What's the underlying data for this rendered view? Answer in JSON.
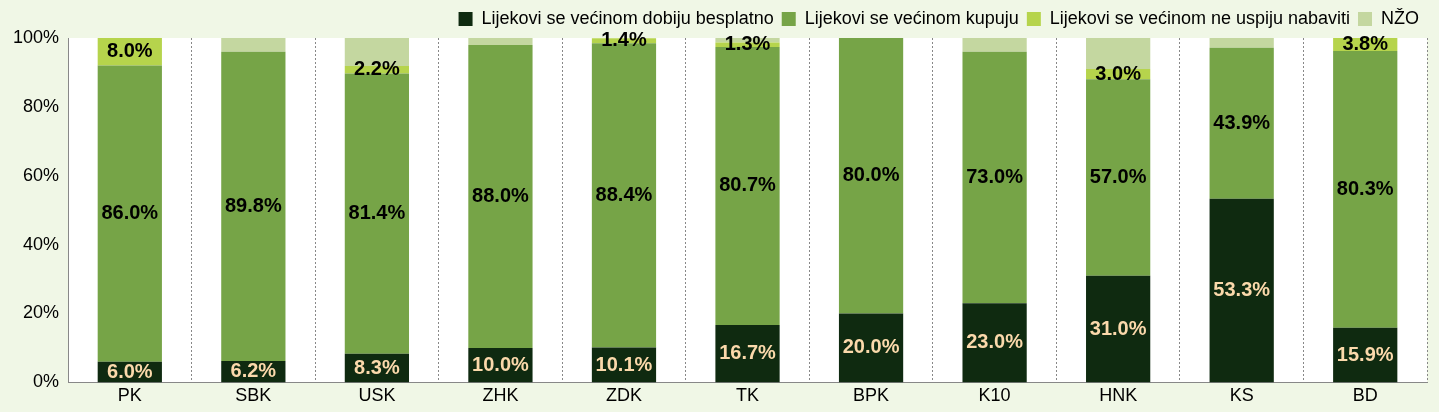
{
  "chart_data": {
    "type": "bar",
    "stacked": true,
    "categories": [
      "PK",
      "SBK",
      "USK",
      "ZHK",
      "ZDK",
      "TK",
      "BPK",
      "K10",
      "HNK",
      "KS",
      "BD"
    ],
    "series": [
      {
        "name": "Lijekovi se većinom dobiju besplatno",
        "color": "#0f2a10",
        "values": [
          6.0,
          6.2,
          8.3,
          10.0,
          10.1,
          16.7,
          20.0,
          23.0,
          31.0,
          53.3,
          15.9
        ],
        "value_labels": [
          "6.0%",
          "6.2%",
          "8.3%",
          "10.0%",
          "10.1%",
          "16.7%",
          "20.0%",
          "23.0%",
          "31.0%",
          "53.3%",
          "15.9%"
        ]
      },
      {
        "name": "Lijekovi se većinom kupuju",
        "color": "#76a447",
        "values": [
          86.0,
          89.8,
          81.4,
          88.0,
          88.4,
          80.7,
          80.0,
          73.0,
          57.0,
          43.9,
          80.3
        ],
        "value_labels": [
          "86.0%",
          "89.8%",
          "81.4%",
          "88.0%",
          "88.4%",
          "80.7%",
          "80.0%",
          "73.0%",
          "57.0%",
          "43.9%",
          "80.3%"
        ]
      },
      {
        "name": "Lijekovi se većinom ne uspiju nabaviti",
        "color": "#b6d44c",
        "values": [
          8.0,
          0,
          2.2,
          0,
          1.4,
          1.3,
          0,
          0,
          3.0,
          0,
          3.8
        ],
        "value_labels": [
          "8.0%",
          null,
          "2.2%",
          null,
          "1.4%",
          "1.3%",
          null,
          null,
          "3.0%",
          null,
          "3.8%"
        ]
      },
      {
        "name": "NŽO",
        "color": "#c4d7a0",
        "values": [
          0,
          4.0,
          8.1,
          2.0,
          null,
          1.3,
          0,
          4.0,
          9.0,
          2.8,
          0
        ],
        "value_labels": [
          null,
          null,
          null,
          null,
          null,
          null,
          null,
          null,
          null,
          null,
          null
        ]
      }
    ],
    "ylim": [
      0,
      100
    ],
    "yticks": [
      {
        "value": 0,
        "label": "0%"
      },
      {
        "value": 20,
        "label": "20%"
      },
      {
        "value": 40,
        "label": "40%"
      },
      {
        "value": 60,
        "label": "60%"
      },
      {
        "value": 80,
        "label": "80%"
      },
      {
        "value": 100,
        "label": "100%"
      }
    ],
    "grid": "x",
    "legend": "top right"
  }
}
